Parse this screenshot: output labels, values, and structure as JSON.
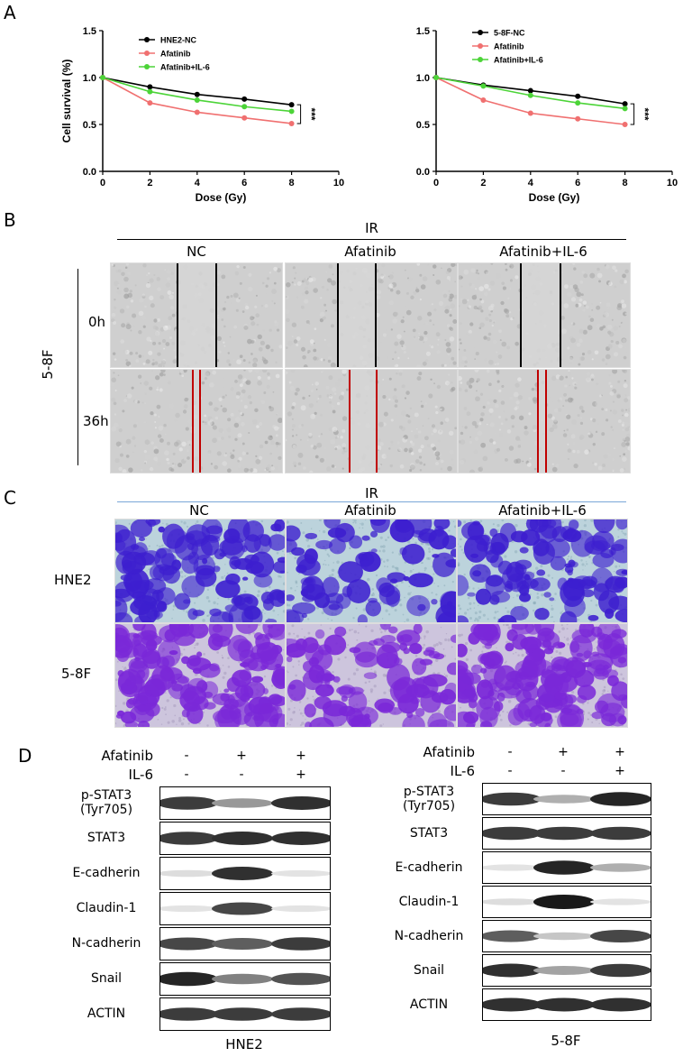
{
  "panels": {
    "a": "A",
    "b": "B",
    "c": "C",
    "d": "D"
  },
  "chart_data": [
    {
      "type": "line",
      "xlabel": "Dose (Gy)",
      "ylabel": "Cell survival (%)",
      "xlim": [
        0,
        10
      ],
      "ylim": [
        0,
        1.5
      ],
      "xticks": [
        "0",
        "2",
        "4",
        "6",
        "8",
        "10"
      ],
      "yticks": [
        "0.0",
        "0.5",
        "1.0",
        "1.5"
      ],
      "x": [
        0,
        2,
        4,
        6,
        8
      ],
      "series": [
        {
          "name": "HNE2-NC",
          "color": "#000000",
          "values": [
            1.0,
            0.9,
            0.82,
            0.77,
            0.71
          ]
        },
        {
          "name": "Afatinib",
          "color": "#f07070",
          "values": [
            1.0,
            0.73,
            0.63,
            0.57,
            0.51
          ]
        },
        {
          "name": "Afatinib+IL-6",
          "color": "#4cd438",
          "values": [
            1.0,
            0.85,
            0.76,
            0.69,
            0.64
          ]
        }
      ],
      "annotation": "***"
    },
    {
      "type": "line",
      "xlabel": "Dose (Gy)",
      "ylabel": "",
      "xlim": [
        0,
        10
      ],
      "ylim": [
        0,
        1.5
      ],
      "xticks": [
        "0",
        "2",
        "4",
        "6",
        "8",
        "10"
      ],
      "yticks": [
        "0.0",
        "0.5",
        "1.0",
        "1.5"
      ],
      "x": [
        0,
        2,
        4,
        6,
        8
      ],
      "series": [
        {
          "name": "5-8F-NC",
          "color": "#000000",
          "values": [
            1.0,
            0.92,
            0.86,
            0.8,
            0.72
          ]
        },
        {
          "name": "Afatinib",
          "color": "#f07070",
          "values": [
            1.0,
            0.76,
            0.62,
            0.56,
            0.5
          ]
        },
        {
          "name": "Afatinib+IL-6",
          "color": "#4cd438",
          "values": [
            1.0,
            0.91,
            0.81,
            0.73,
            0.67
          ]
        }
      ],
      "annotation": "***"
    }
  ],
  "panel_b": {
    "ir": "IR",
    "columns": [
      "NC",
      "Afatinib",
      "Afatinib+IL-6"
    ],
    "cell_line": "5-8F",
    "rows": [
      "0h",
      "36h"
    ]
  },
  "panel_c": {
    "ir": "IR",
    "columns": [
      "NC",
      "Afatinib",
      "Afatinib+IL-6"
    ],
    "rows": [
      "HNE2",
      "5-8F"
    ]
  },
  "panel_d": {
    "left": {
      "title": "HNE2",
      "treatments": [
        {
          "name": "Afatinib",
          "signs": [
            "-",
            "+",
            "+"
          ]
        },
        {
          "name": "IL-6",
          "signs": [
            "-",
            "-",
            "+"
          ]
        }
      ],
      "proteins": [
        "p-STAT3\n(Tyr705)",
        "STAT3",
        "E-cadherin",
        "Claudin-1",
        "N-cadherin",
        "Snail",
        "ACTIN"
      ],
      "intensity": [
        [
          0.85,
          0.45,
          0.9
        ],
        [
          0.85,
          0.9,
          0.9
        ],
        [
          0.15,
          0.9,
          0.12
        ],
        [
          0.12,
          0.8,
          0.12
        ],
        [
          0.8,
          0.7,
          0.85
        ],
        [
          0.95,
          0.55,
          0.75
        ],
        [
          0.85,
          0.85,
          0.85
        ]
      ]
    },
    "right": {
      "title": "5-8F",
      "treatments": [
        {
          "name": "Afatinib",
          "signs": [
            "-",
            "+",
            "+"
          ]
        },
        {
          "name": "IL-6",
          "signs": [
            "-",
            "-",
            "+"
          ]
        }
      ],
      "proteins": [
        "p-STAT3\n(Tyr705)",
        "STAT3",
        "E-cadherin",
        "Claudin-1",
        "N-cadherin",
        "Snail",
        "ACTIN"
      ],
      "intensity": [
        [
          0.85,
          0.35,
          0.95
        ],
        [
          0.85,
          0.85,
          0.85
        ],
        [
          0.12,
          0.95,
          0.35
        ],
        [
          0.15,
          1.0,
          0.12
        ],
        [
          0.7,
          0.25,
          0.8
        ],
        [
          0.9,
          0.4,
          0.85
        ],
        [
          0.9,
          0.9,
          0.9
        ]
      ]
    }
  }
}
